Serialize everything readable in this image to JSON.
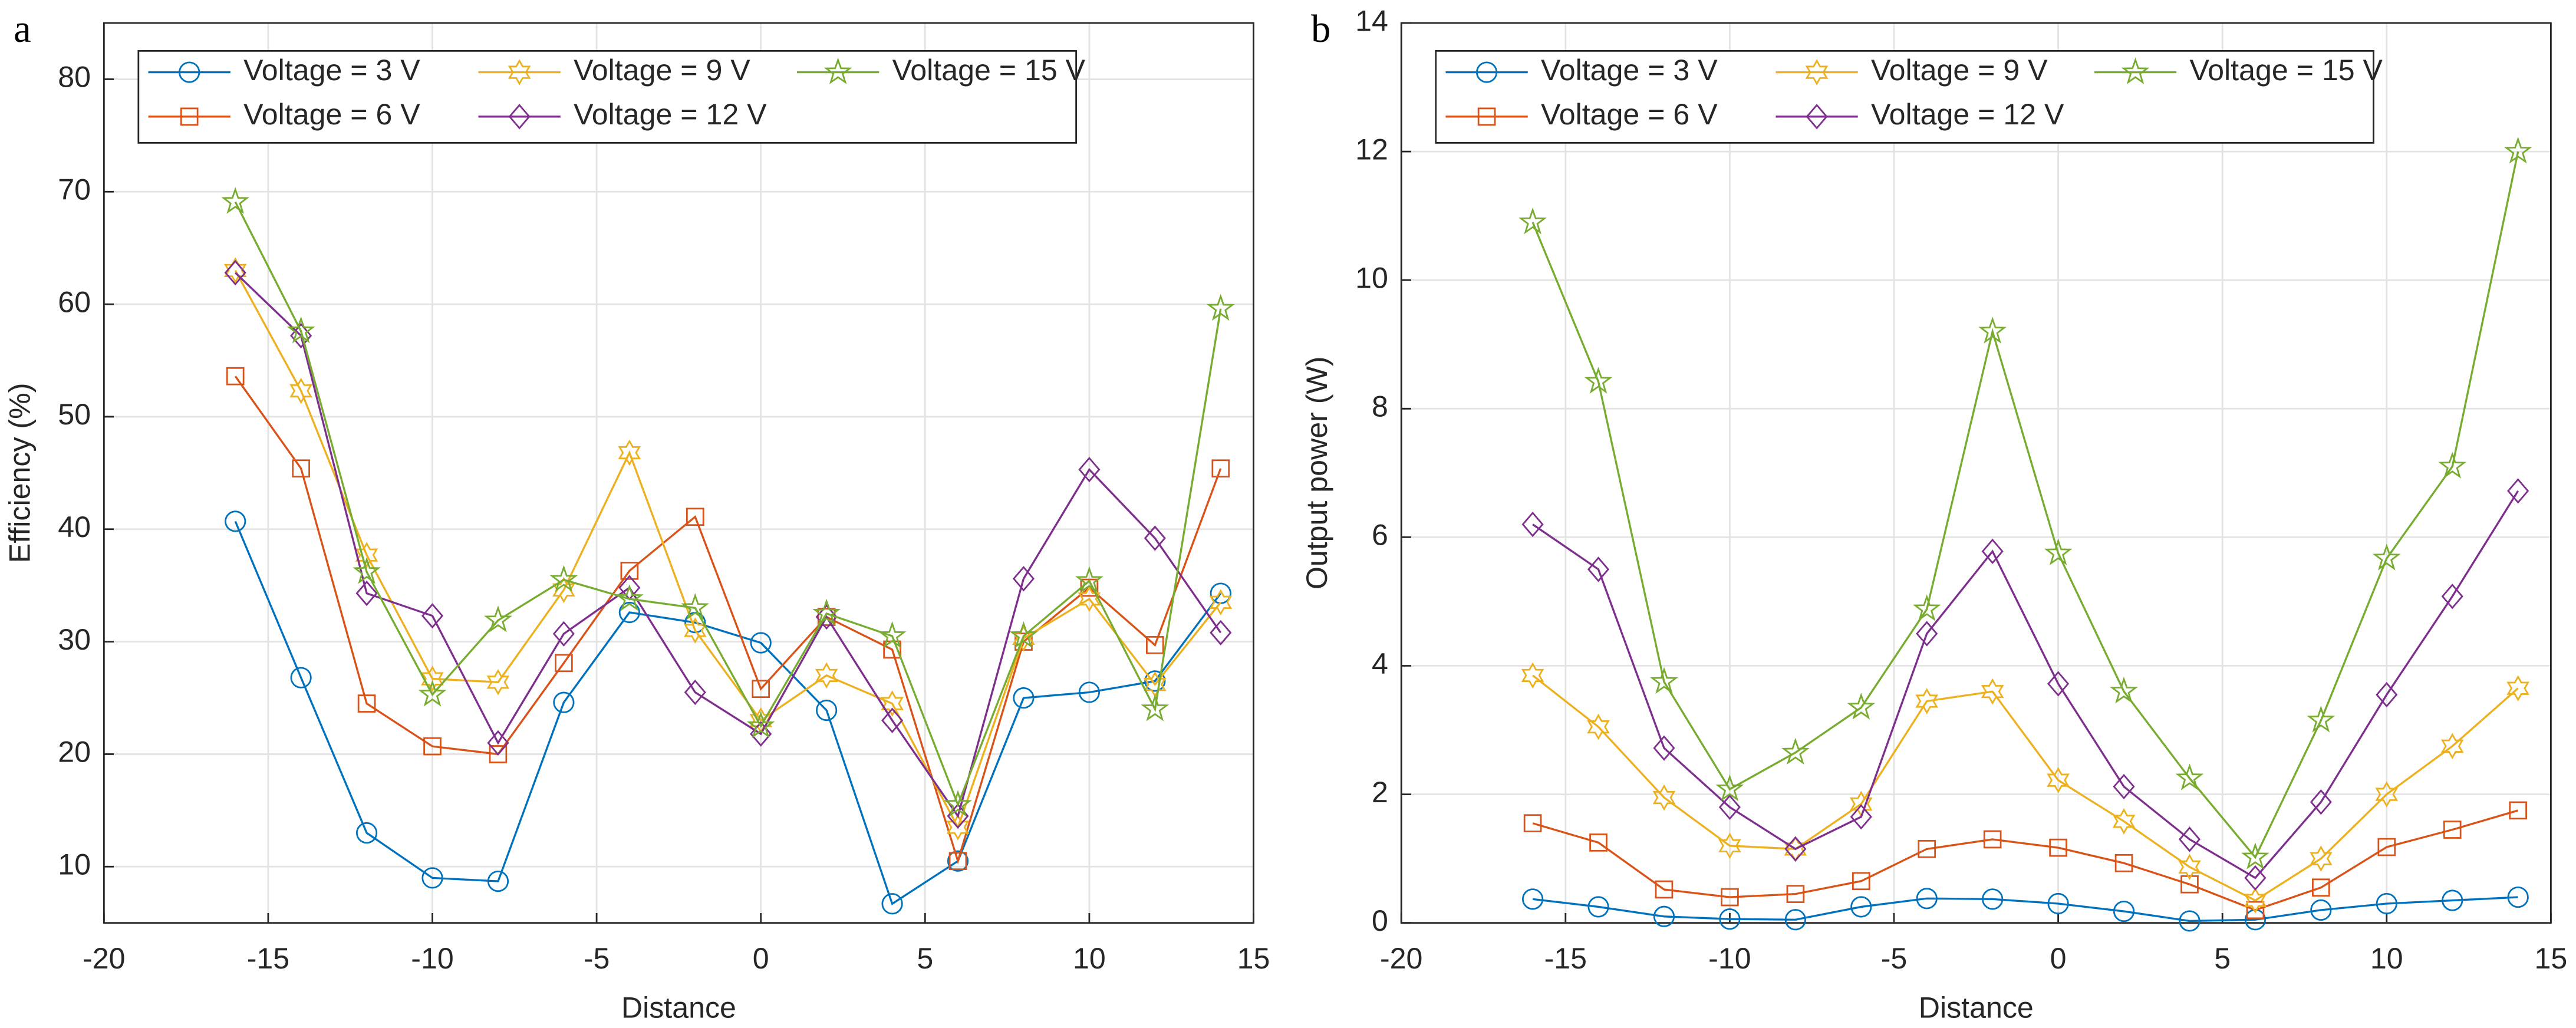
{
  "chart_data": [
    {
      "type": "line",
      "label": "a",
      "xlabel": "Distance",
      "ylabel": "Efficiency (%)",
      "x": [
        -16,
        -14,
        -12,
        -10,
        -8,
        -6,
        -4,
        -2,
        0,
        2,
        4,
        6,
        8,
        10,
        12,
        14
      ],
      "xlim": [
        -20,
        15
      ],
      "xticks": [
        -20,
        -15,
        -10,
        -5,
        0,
        5,
        10,
        15
      ],
      "ylim": [
        5,
        85
      ],
      "yticks": [
        10,
        20,
        30,
        40,
        50,
        60,
        70,
        80
      ],
      "grid": true,
      "legend": "top-left",
      "series": [
        {
          "name": "Voltage = 3 V",
          "color": "#0072bd",
          "marker": "circle",
          "values": [
            40.7,
            26.8,
            13,
            9,
            8.7,
            24.6,
            32.6,
            31.7,
            29.9,
            23.9,
            6.7,
            10.5,
            25,
            25.5,
            26.5,
            34.3
          ]
        },
        {
          "name": "Voltage = 6 V",
          "color": "#d95319",
          "marker": "square",
          "values": [
            53.6,
            45.4,
            24.5,
            20.7,
            20,
            28.1,
            36.3,
            41.1,
            25.8,
            32.2,
            29.3,
            10.5,
            30,
            34.8,
            29.7,
            45.4
          ]
        },
        {
          "name": "Voltage = 9 V",
          "color": "#edb120",
          "marker": "hexagram",
          "values": [
            63,
            52.3,
            37.7,
            26.7,
            26.4,
            34.6,
            46.8,
            31,
            23,
            27,
            24.5,
            13.5,
            30.3,
            33.8,
            26.2,
            33.5
          ]
        },
        {
          "name": "Voltage = 12 V",
          "color": "#7e2f8e",
          "marker": "diamond",
          "values": [
            62.8,
            57.2,
            34.3,
            32.3,
            21,
            30.7,
            34.8,
            25.5,
            21.8,
            32.2,
            23,
            14.5,
            35.6,
            45.3,
            39.2,
            30.8
          ]
        },
        {
          "name": "Voltage = 15 V",
          "color": "#77ac30",
          "marker": "pentagram",
          "values": [
            69.1,
            57.6,
            36.2,
            25.3,
            31.9,
            35.5,
            33.8,
            33,
            22.5,
            32.5,
            30.5,
            15.5,
            30.5,
            35.4,
            24,
            59.6
          ]
        }
      ]
    },
    {
      "type": "line",
      "label": "b",
      "xlabel": "Distance",
      "ylabel": "Output power (W)",
      "x": [
        -16,
        -14,
        -12,
        -10,
        -8,
        -6,
        -4,
        -2,
        0,
        2,
        4,
        6,
        8,
        10,
        12,
        14
      ],
      "xlim": [
        -20,
        15
      ],
      "xticks": [
        -20,
        -15,
        -10,
        -5,
        0,
        5,
        10,
        15
      ],
      "ylim": [
        0,
        14
      ],
      "yticks": [
        0,
        2,
        4,
        6,
        8,
        10,
        12,
        14
      ],
      "grid": true,
      "legend": "top-left",
      "series": [
        {
          "name": "Voltage = 3 V",
          "color": "#0072bd",
          "marker": "circle",
          "values": [
            0.37,
            0.25,
            0.1,
            0.06,
            0.05,
            0.25,
            0.38,
            0.37,
            0.3,
            0.18,
            0.03,
            0.05,
            0.2,
            0.3,
            0.35,
            0.4
          ]
        },
        {
          "name": "Voltage = 6 V",
          "color": "#d95319",
          "marker": "square",
          "values": [
            1.55,
            1.25,
            0.52,
            0.4,
            0.45,
            0.65,
            1.15,
            1.3,
            1.17,
            0.93,
            0.6,
            0.2,
            0.55,
            1.18,
            1.45,
            1.75
          ]
        },
        {
          "name": "Voltage = 9 V",
          "color": "#edb120",
          "marker": "hexagram",
          "values": [
            3.85,
            3.05,
            1.95,
            1.2,
            1.15,
            1.85,
            3.45,
            3.6,
            2.22,
            1.58,
            0.87,
            0.35,
            1.0,
            2.0,
            2.75,
            3.65
          ]
        },
        {
          "name": "Voltage = 12 V",
          "color": "#7e2f8e",
          "marker": "diamond",
          "values": [
            6.2,
            5.5,
            2.72,
            1.8,
            1.15,
            1.65,
            4.5,
            5.78,
            3.72,
            2.12,
            1.3,
            0.7,
            1.88,
            3.55,
            5.08,
            6.72
          ]
        },
        {
          "name": "Voltage = 15 V",
          "color": "#77ac30",
          "marker": "pentagram",
          "values": [
            10.9,
            8.42,
            3.75,
            2.08,
            2.65,
            3.35,
            4.88,
            9.2,
            5.75,
            3.6,
            2.25,
            1.02,
            3.15,
            5.67,
            7.1,
            12
          ]
        }
      ]
    }
  ]
}
